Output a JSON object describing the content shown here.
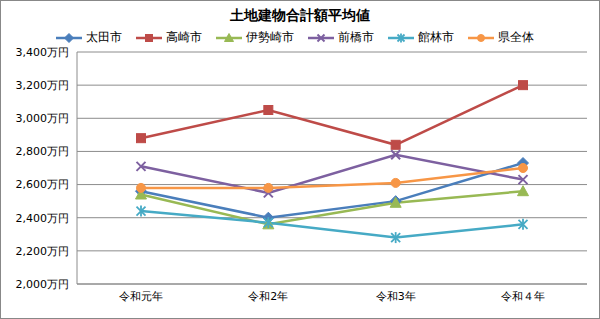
{
  "chart_data": {
    "type": "line",
    "title": "土地建物合計額平均値",
    "categories": [
      "令和元年",
      "令和2年",
      "令和3年",
      "令和４年"
    ],
    "series": [
      {
        "name": "太田市",
        "color": "#4a7ebb",
        "marker": "diamond",
        "values": [
          2560,
          2400,
          2500,
          2730
        ]
      },
      {
        "name": "高崎市",
        "color": "#be4b48",
        "marker": "square",
        "values": [
          2880,
          3050,
          2840,
          3200
        ]
      },
      {
        "name": "伊勢崎市",
        "color": "#98b954",
        "marker": "triangle",
        "values": [
          2540,
          2360,
          2490,
          2560
        ]
      },
      {
        "name": "前橋市",
        "color": "#7d60a0",
        "marker": "x",
        "values": [
          2710,
          2550,
          2780,
          2630
        ]
      },
      {
        "name": "館林市",
        "color": "#46aac5",
        "marker": "star",
        "values": [
          2440,
          2370,
          2280,
          2360
        ]
      },
      {
        "name": "県全体",
        "color": "#f79646",
        "marker": "circle",
        "values": [
          2580,
          2580,
          2610,
          2700
        ]
      }
    ],
    "ylim": [
      2000,
      3400
    ],
    "yticks": [
      {
        "value": 2000,
        "label": "2,000万円"
      },
      {
        "value": 2200,
        "label": "2,200万円"
      },
      {
        "value": 2400,
        "label": "2,400万円"
      },
      {
        "value": 2600,
        "label": "2,600万円"
      },
      {
        "value": 2800,
        "label": "2,800万円"
      },
      {
        "value": 3000,
        "label": "3,000万円"
      },
      {
        "value": 3200,
        "label": "3,200万円"
      },
      {
        "value": 3400,
        "label": "3,400万円"
      }
    ],
    "grid": true,
    "legend": "top"
  }
}
